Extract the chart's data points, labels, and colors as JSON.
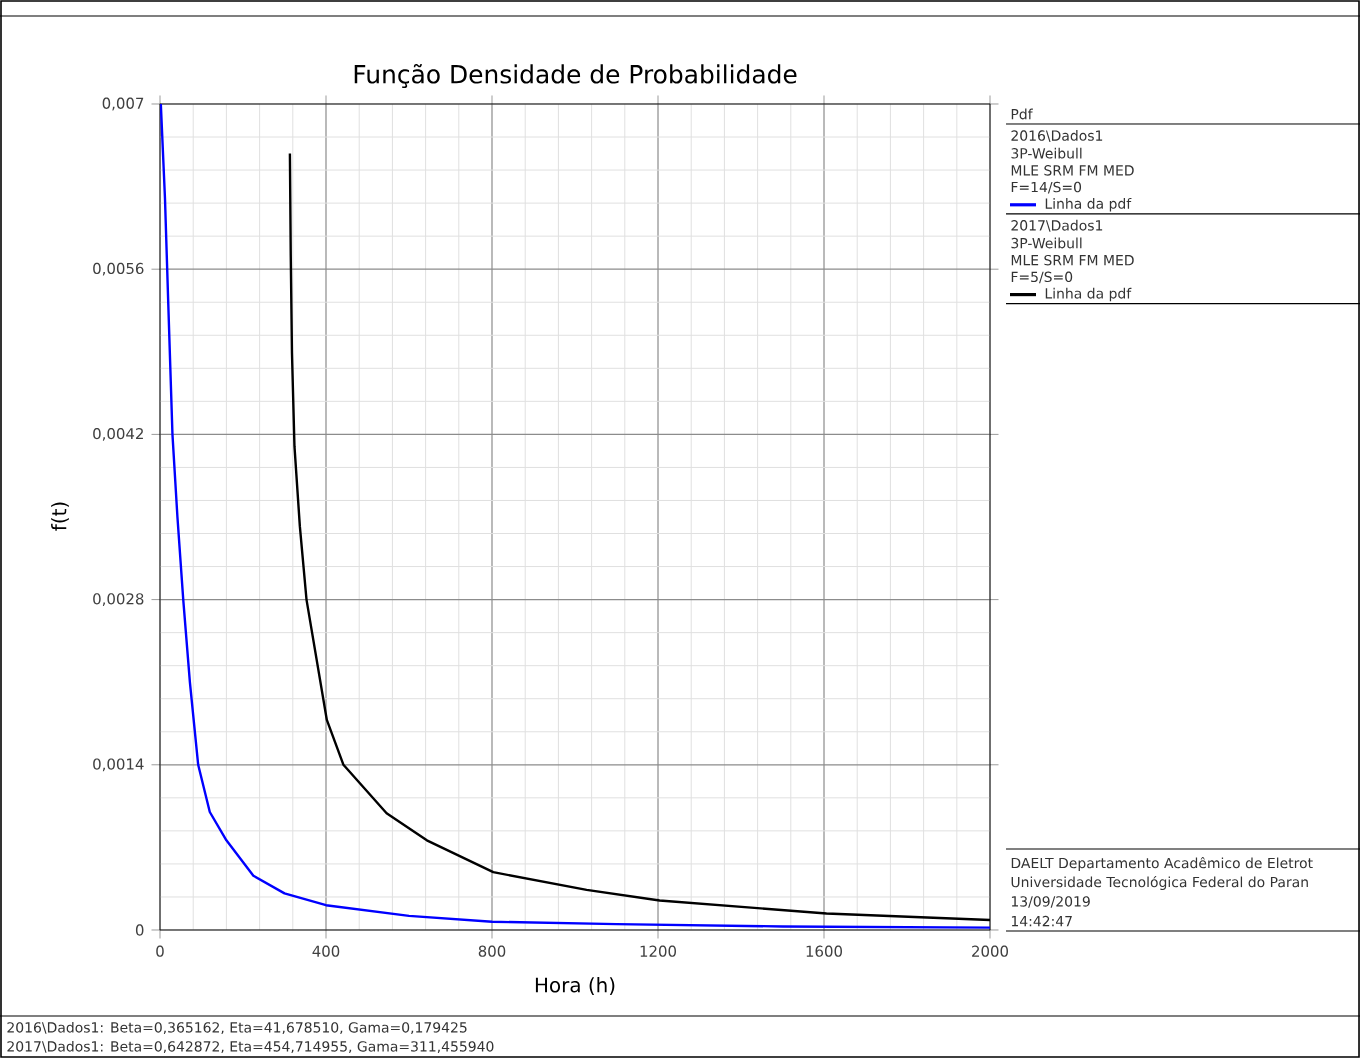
{
  "chart_data": {
    "type": "line",
    "title": "Função Densidade de Probabilidade",
    "xlabel": "Hora (h)",
    "ylabel": "f(t)",
    "legend_title": "Pdf",
    "legend": "right",
    "grid": true,
    "xlim": [
      0,
      2000
    ],
    "xticks": [
      0,
      400,
      800,
      1200,
      1600,
      2000
    ],
    "ylim": [
      0,
      0.007
    ],
    "yticks": [
      {
        "value": 0,
        "label": "0"
      },
      {
        "value": 0.0014,
        "label": "0,0014"
      },
      {
        "value": 0.0028,
        "label": "0,0028"
      },
      {
        "value": 0.0042,
        "label": "0,0042"
      },
      {
        "value": 0.0056,
        "label": "0,0056"
      },
      {
        "value": 0.007,
        "label": "0,007"
      }
    ],
    "series": [
      {
        "name": "Linha da pdf",
        "color": "#0000ff",
        "x": [
          2,
          12,
          20,
          30,
          42,
          56,
          72,
          92,
          120,
          160,
          225,
          300,
          400,
          600,
          800,
          1100,
          1500,
          2000
        ],
        "values": [
          0.007,
          0.0062,
          0.0053,
          0.0042,
          0.0035,
          0.0028,
          0.0021,
          0.0014,
          0.001,
          0.00076,
          0.00046,
          0.00031,
          0.00021,
          0.00012,
          7e-05,
          5e-05,
          3e-05,
          2e-05
        ]
      },
      {
        "name": "Linha da pdf",
        "color": "#000000",
        "x": [
          313,
          315,
          318,
          324,
          337,
          353,
          402,
          442,
          546,
          643,
          803,
          1028,
          1204,
          1606,
          2000
        ],
        "values": [
          0.00658,
          0.00573,
          0.00489,
          0.0041,
          0.00342,
          0.0028,
          0.00178,
          0.0014,
          0.00099,
          0.00076,
          0.00049,
          0.00034,
          0.00025,
          0.00014,
          8.5e-05
        ]
      }
    ],
    "annotations": [
      "2016\\Dados1",
      "3P-Weibull",
      "MLE SRM FM MED",
      "F=14/S=0",
      "2017\\Dados1",
      "3P-Weibull",
      "MLE SRM FM MED",
      "F=5/S=0",
      "DAELT Departamento Acadêmico de Eletrot",
      "Universidade Tecnológica Federal do Paran",
      "13/09/2019",
      "14:42:47",
      "2016\\Dados1: Beta=0,365162, Eta=41,678510, Gama=0,179425",
      "2017\\Dados1: Beta=0,642872, Eta=454,714955, Gama=311,455940"
    ]
  }
}
